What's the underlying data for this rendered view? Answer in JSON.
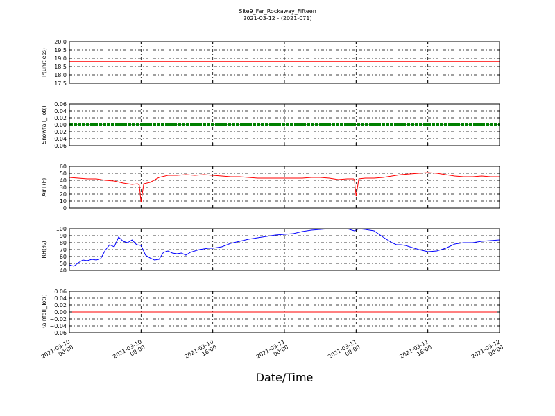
{
  "figure": {
    "title_line1": "Site9_Far_Rockaway_Fifteen",
    "title_line2": "2021-03-12 - (2021-071)",
    "xlabel": "Date/Time"
  },
  "chart_data": [
    {
      "type": "line",
      "ylabel": "P(unitless)",
      "ylim": [
        17.5,
        20.0
      ],
      "yticks": [
        17.5,
        18.0,
        18.5,
        19.0,
        19.5,
        20.0
      ],
      "ytick_labels": [
        "17.5",
        "18.0",
        "18.5",
        "19.0",
        "19.5",
        "20.0"
      ],
      "color": "#ff0000",
      "grid": true,
      "series": [
        {
          "x": [
            0,
            48
          ],
          "y": [
            18.8,
            18.8
          ]
        }
      ]
    },
    {
      "type": "scatter",
      "ylabel": "Snowfall_Tot()",
      "ylim": [
        -0.06,
        0.06
      ],
      "yticks": [
        -0.06,
        -0.04,
        -0.02,
        0.0,
        0.02,
        0.04,
        0.06
      ],
      "ytick_labels": [
        "−0.06",
        "−0.04",
        "−0.02",
        "0.00",
        "0.02",
        "0.04",
        "0.06"
      ],
      "color": "#008000",
      "grid": true,
      "series": [
        {
          "x": [
            0,
            48
          ],
          "y": [
            0,
            0
          ]
        }
      ]
    },
    {
      "type": "line",
      "ylabel": "AirT(F)",
      "ylim": [
        0,
        60
      ],
      "yticks": [
        0,
        10,
        20,
        30,
        40,
        50,
        60
      ],
      "ytick_labels": [
        "0",
        "10",
        "20",
        "30",
        "40",
        "50",
        "60"
      ],
      "color": "#ff0000",
      "grid": true,
      "series": [
        {
          "x": [
            0,
            1,
            2,
            3,
            4,
            5,
            6,
            7,
            7.6,
            7.8,
            8.0,
            8.3,
            9,
            10,
            11,
            12,
            13,
            14,
            15,
            16,
            17,
            18,
            19,
            20,
            21,
            22,
            23,
            24,
            25,
            26,
            27,
            28,
            29,
            30,
            31,
            31.7,
            31.8,
            32.0,
            32.3,
            33,
            34,
            35,
            36,
            37,
            38,
            39,
            40,
            41,
            42,
            43,
            44,
            45,
            46,
            47,
            48
          ],
          "y": [
            44,
            43,
            42,
            42,
            40,
            39,
            36,
            34,
            35,
            33,
            8,
            35,
            37,
            44,
            47,
            47,
            48,
            47,
            48,
            47,
            46,
            45,
            45,
            44,
            43,
            43,
            43,
            43,
            43,
            43,
            44,
            44,
            43,
            41,
            42,
            42,
            41,
            17,
            42,
            43,
            43,
            44,
            46,
            48,
            49,
            50,
            51,
            50,
            48,
            46,
            45,
            45,
            46,
            45,
            45
          ]
        }
      ]
    },
    {
      "type": "line",
      "ylabel": "RH(%)",
      "ylim": [
        40,
        100
      ],
      "yticks": [
        40,
        50,
        60,
        70,
        80,
        90,
        100
      ],
      "ytick_labels": [
        "40",
        "50",
        "60",
        "70",
        "80",
        "90",
        "100"
      ],
      "color": "#0000ff",
      "grid": true,
      "series": [
        {
          "x": [
            0,
            0.5,
            1,
            1.5,
            2,
            2.5,
            3,
            3.5,
            4,
            4.5,
            5,
            5.5,
            6,
            6.5,
            7,
            7.5,
            8,
            8.5,
            9,
            9.5,
            10,
            10.5,
            11,
            11.5,
            12,
            12.5,
            13,
            13.5,
            14,
            14.5,
            15,
            15.5,
            16,
            17,
            18,
            19,
            20,
            21,
            22,
            23,
            24,
            25,
            26,
            27,
            28,
            29,
            30,
            31,
            31.8,
            32.3,
            33,
            34,
            35,
            36,
            36.5,
            37,
            37.5,
            38,
            39,
            40,
            41,
            42,
            43,
            44,
            45,
            46,
            47,
            48
          ],
          "y": [
            48,
            46,
            51,
            55,
            54,
            56,
            55,
            57,
            69,
            77,
            74,
            88,
            82,
            80,
            84,
            77,
            76,
            62,
            58,
            55,
            56,
            66,
            68,
            65,
            64,
            65,
            62,
            66,
            68,
            70,
            71,
            72,
            72,
            74,
            79,
            82,
            85,
            87,
            89,
            91,
            92,
            93,
            96,
            98,
            99,
            100,
            100,
            100,
            97,
            100,
            99,
            97,
            88,
            80,
            77,
            77,
            76,
            74,
            70,
            67,
            68,
            72,
            78,
            80,
            80,
            82,
            83,
            84
          ]
        }
      ]
    },
    {
      "type": "line",
      "ylabel": "Rainfall_Tot()",
      "ylim": [
        -0.06,
        0.06
      ],
      "yticks": [
        -0.06,
        -0.04,
        -0.02,
        0.0,
        0.02,
        0.04,
        0.06
      ],
      "ytick_labels": [
        "−0.06",
        "−0.04",
        "−0.02",
        "0.00",
        "0.02",
        "0.04",
        "0.06"
      ],
      "color": "#ff0000",
      "grid": true,
      "series": [
        {
          "x": [
            0,
            48
          ],
          "y": [
            0,
            0
          ]
        }
      ]
    }
  ],
  "x_axis": {
    "xlim": [
      0,
      48
    ],
    "ticks": [
      0,
      8,
      16,
      24,
      32,
      40,
      48
    ],
    "tick_labels": [
      [
        "2021-03-10",
        "00:00"
      ],
      [
        "2021-03-10",
        "08:00"
      ],
      [
        "2021-03-10",
        "16:00"
      ],
      [
        "2021-03-11",
        "00:00"
      ],
      [
        "2021-03-11",
        "08:00"
      ],
      [
        "2021-03-11",
        "16:00"
      ],
      [
        "2021-03-12",
        "00:00"
      ]
    ]
  }
}
